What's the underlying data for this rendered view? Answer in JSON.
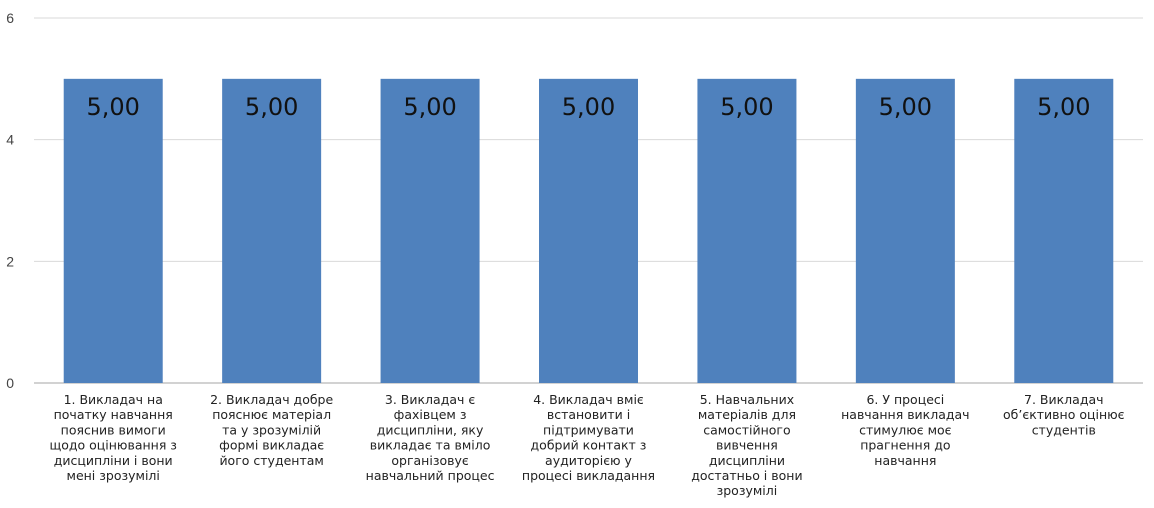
{
  "chart_data": {
    "type": "bar",
    "categories": [
      "1. Викладач на початку навчання пояснив вимоги щодо оцінювання з дисципліни і вони мені зрозумілі",
      "2. Викладач добре пояснює матеріал та у зрозумілій формі викладає його студентам",
      "3. Викладач є фахівцем з дисципліни, яку викладає та вміло організовує навчальний процес",
      "4. Викладач вміє встановити і підтримувати добрий контакт з аудиторією у процесі викладання",
      "5. Навчальних матеріалів для самостійного вивчення дисципліни достатньо і вони зрозумілі",
      "6.  У процесі навчання викладач стимулює моє прагнення до навчання",
      "7. Викладач об’єктивно оцінює студентів"
    ],
    "category_lines": [
      [
        "1. Викладач на",
        "початку навчання",
        "пояснив вимоги",
        "щодо оцінювання з",
        "дисципліни і вони",
        "мені зрозумілі"
      ],
      [
        "2. Викладач добре",
        "пояснює матеріал",
        "та у зрозумілій",
        "формі викладає",
        "його студентам"
      ],
      [
        "3. Викладач є",
        "фахівцем з",
        "дисципліни, яку",
        "викладає та вміло",
        "організовує",
        "навчальний процес"
      ],
      [
        "4. Викладач вміє",
        "встановити і",
        "підтримувати",
        "добрий контакт з",
        "аудиторією у",
        "процесі викладання"
      ],
      [
        "5. Навчальних",
        "матеріалів для",
        "самостійного",
        "вивчення",
        "дисципліни",
        "достатньо і вони",
        "зрозумілі"
      ],
      [
        "6.  У процесі",
        "навчання викладач",
        "стимулює моє",
        "прагнення до",
        "навчання"
      ],
      [
        "7. Викладач",
        "об’єктивно оцінює",
        "студентів"
      ]
    ],
    "values": [
      5,
      5,
      5,
      5,
      5,
      5,
      5
    ],
    "data_labels": [
      "5,00",
      "5,00",
      "5,00",
      "5,00",
      "5,00",
      "5,00",
      "5,00"
    ],
    "ylim": [
      0,
      6
    ],
    "yticks": [
      0,
      2,
      4,
      6
    ],
    "ytick_labels": [
      "0",
      "2",
      "4",
      "6"
    ],
    "grid": true,
    "bar_color": "#4f81bd",
    "grid_color": "#d9d9d9",
    "axis_color": "#a6a6a6"
  }
}
